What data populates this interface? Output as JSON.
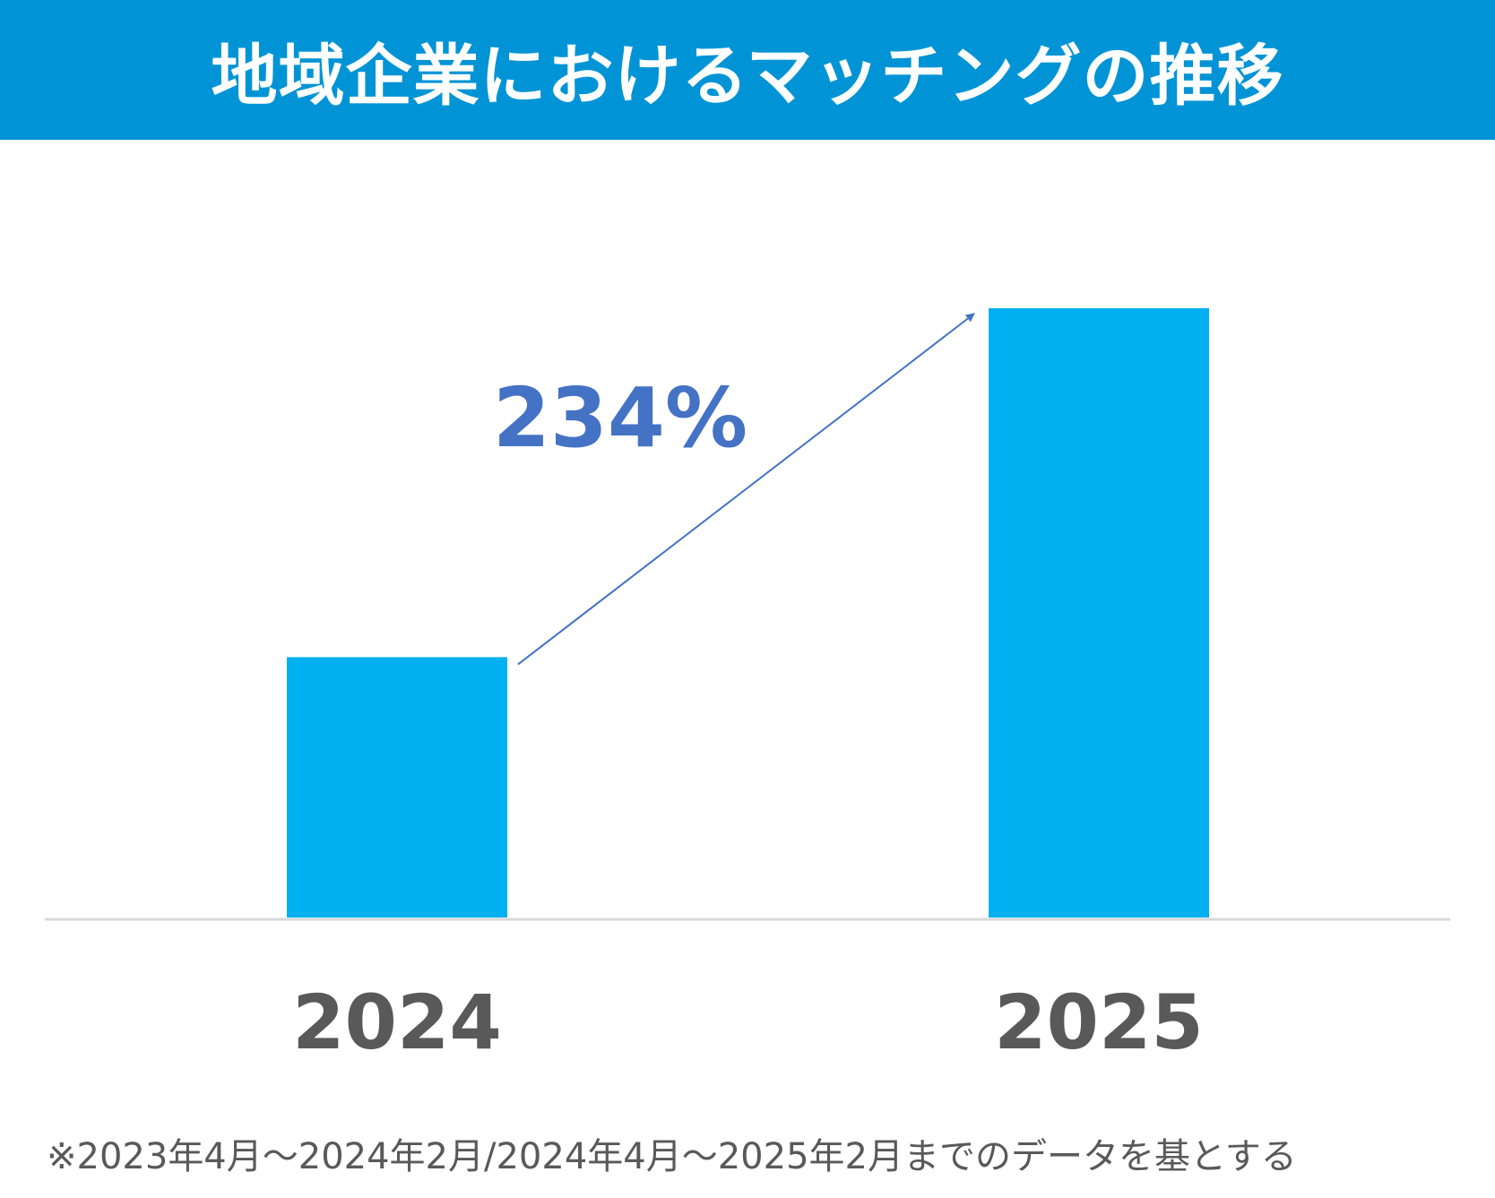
{
  "header": {
    "title": "地域企業におけるマッチングの推移"
  },
  "colors": {
    "header_bg": "#0094d6",
    "bar": "#00b0f0",
    "annotation": "#4472c4",
    "axis_label": "#595959",
    "baseline": "#d9d9d9"
  },
  "chart_data": {
    "type": "bar",
    "categories": [
      "2024",
      "2025"
    ],
    "values": [
      100,
      234
    ],
    "ylim": [
      0,
      234
    ],
    "grid": false,
    "annotation": {
      "text": "234%",
      "from": "2024",
      "to": "2025"
    }
  },
  "footnote": "※2023年4月～2024年2月/2024年4月～2025年2月までのデータを基とする"
}
